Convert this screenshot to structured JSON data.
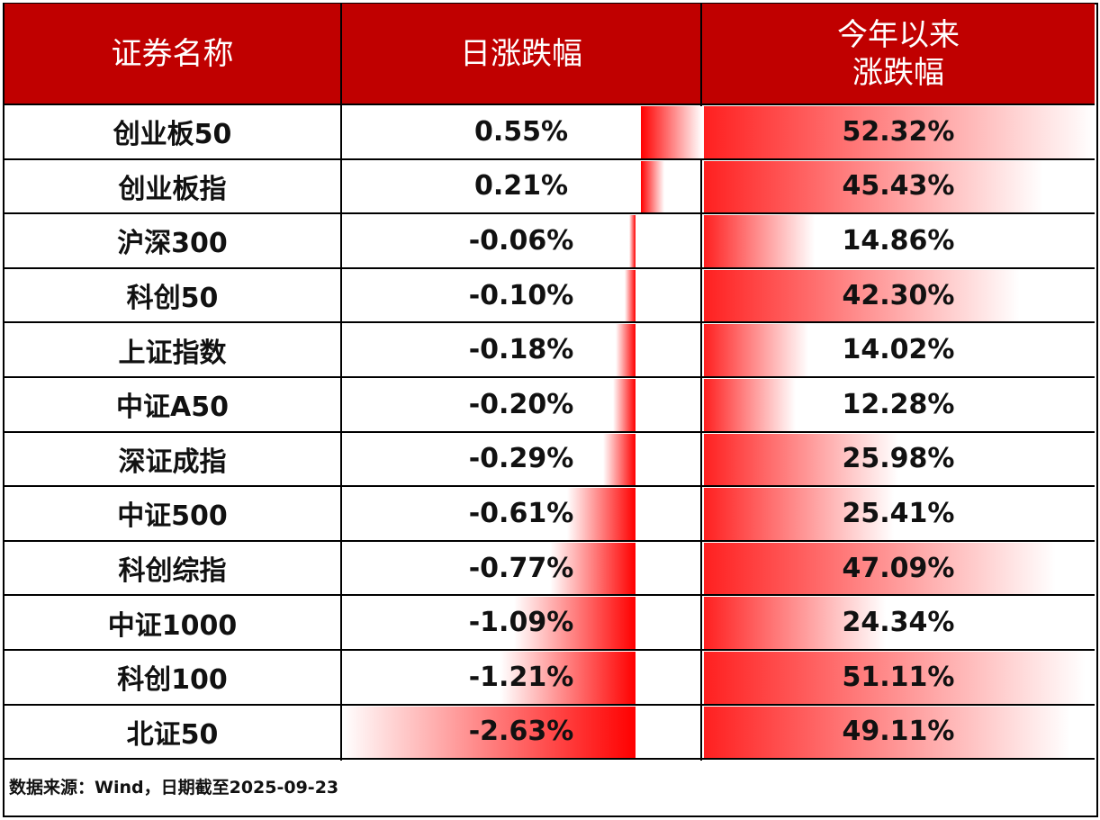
{
  "headers": {
    "name": "证券名称",
    "daily": "日涨跌幅",
    "ytd_line1": "今年以来",
    "ytd_line2": "涨跌幅"
  },
  "chart_data": {
    "type": "table",
    "columns": [
      "证券名称",
      "日涨跌幅",
      "今年以来涨跌幅"
    ],
    "rows": [
      {
        "name": "创业板50",
        "daily": 0.55,
        "ytd": 52.32
      },
      {
        "name": "创业板指",
        "daily": 0.21,
        "ytd": 45.43
      },
      {
        "name": "沪深300",
        "daily": -0.06,
        "ytd": 14.86
      },
      {
        "name": "科创50",
        "daily": -0.1,
        "ytd": 42.3
      },
      {
        "name": "上证指数",
        "daily": -0.18,
        "ytd": 14.02
      },
      {
        "name": "中证A50",
        "daily": -0.2,
        "ytd": 12.28
      },
      {
        "name": "深证成指",
        "daily": -0.29,
        "ytd": 25.98
      },
      {
        "name": "中证500",
        "daily": -0.61,
        "ytd": 25.41
      },
      {
        "name": "科创综指",
        "daily": -0.77,
        "ytd": 47.09
      },
      {
        "name": "中证1000",
        "daily": -1.09,
        "ytd": 24.34
      },
      {
        "name": "科创100",
        "daily": -1.21,
        "ytd": 51.11
      },
      {
        "name": "北证50",
        "daily": -2.63,
        "ytd": 49.11
      }
    ],
    "daily_labels": [
      "0.55%",
      "0.21%",
      "-0.06%",
      "-0.10%",
      "-0.18%",
      "-0.20%",
      "-0.29%",
      "-0.61%",
      "-0.77%",
      "-1.09%",
      "-1.21%",
      "-2.63%"
    ],
    "ytd_labels": [
      "52.32%",
      "45.43%",
      "14.86%",
      "42.30%",
      "14.02%",
      "12.28%",
      "25.98%",
      "25.41%",
      "47.09%",
      "24.34%",
      "51.11%",
      "49.11%"
    ],
    "bar_color": "#ff0000",
    "header_color": "#c00000"
  },
  "footer": {
    "source": "数据来源：Wind，日期截至2025-09-23"
  }
}
